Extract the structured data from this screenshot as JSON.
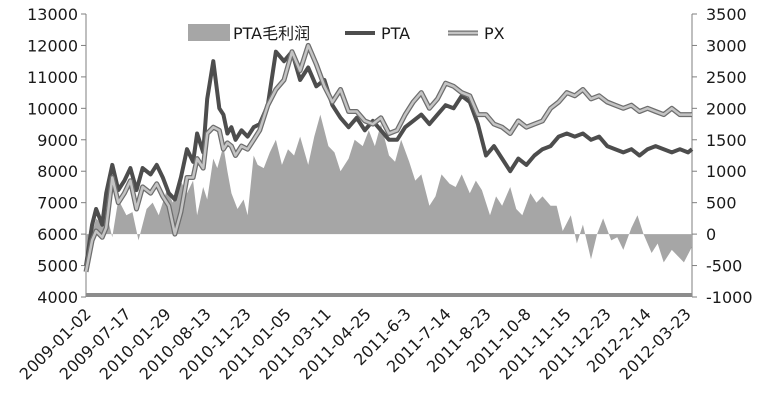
{
  "chart_data": {
    "type": "combo",
    "title": "",
    "left_axis": {
      "min": 4000,
      "max": 13000,
      "step": 1000,
      "ticks": [
        "4000",
        "5000",
        "6000",
        "7000",
        "8000",
        "9000",
        "10000",
        "11000",
        "12000",
        "13000"
      ]
    },
    "right_axis": {
      "min": -1000,
      "max": 3500,
      "step": 500,
      "ticks": [
        "-1000",
        "-500",
        "0",
        "500",
        "1000",
        "1500",
        "2000",
        "2500",
        "3000",
        "3500"
      ]
    },
    "x_labels": [
      "2009-01-02",
      "2009-07-17",
      "2010-01-29",
      "2010-08-13",
      "2010-11-23",
      "2011-01-05",
      "2011-03-11",
      "2011-04-25",
      "2011-6-3",
      "2011-7-14",
      "2011-8-23",
      "2011-10-8",
      "2011-11-15",
      "2011-12-23",
      "2012-2-14",
      "2012-03-23"
    ],
    "grid": false,
    "legend_position": "top",
    "colors": {
      "margin_area": "#a6a6a6",
      "pta_line": "#4d4d4d",
      "px_line": "#c4c4c4",
      "px_outline": "#6e6e6e",
      "baseline": "#8c8c8c"
    },
    "series": [
      {
        "name": "PTA毛利润",
        "type": "area",
        "axis": "right",
        "x": [
          0,
          2,
          5,
          8,
          10,
          13,
          16,
          20,
          23,
          26,
          30,
          33,
          36,
          40,
          43,
          46,
          50,
          53,
          55,
          58,
          60,
          63,
          65,
          68,
          70,
          72,
          75,
          78,
          80,
          83,
          85,
          88,
          91,
          94,
          97,
          100,
          103,
          106,
          110,
          113,
          116,
          120,
          123,
          126,
          130,
          133,
          137,
          140,
          143,
          146,
          150,
          153,
          156,
          160,
          163,
          166,
          170,
          173,
          176,
          180,
          183,
          186,
          190,
          193,
          196,
          200,
          203,
          206,
          210,
          213,
          216,
          220,
          223,
          226,
          230,
          233,
          236,
          240,
          243,
          246,
          250,
          253,
          256,
          260,
          263,
          266,
          270,
          273,
          276,
          280,
          283,
          286,
          290,
          293,
          296,
          300
        ],
        "values": [
          -600,
          -100,
          250,
          150,
          350,
          -50,
          550,
          300,
          350,
          -100,
          400,
          500,
          300,
          700,
          500,
          900,
          650,
          850,
          300,
          750,
          550,
          1200,
          1050,
          1400,
          1000,
          650,
          400,
          550,
          300,
          1250,
          1100,
          1050,
          1300,
          1500,
          1100,
          1350,
          1250,
          1550,
          1100,
          1550,
          1900,
          1400,
          1300,
          1000,
          1200,
          1500,
          1400,
          1650,
          1400,
          1750,
          1250,
          1150,
          1500,
          1150,
          850,
          950,
          450,
          600,
          950,
          800,
          750,
          950,
          650,
          850,
          700,
          300,
          600,
          450,
          750,
          400,
          300,
          650,
          500,
          600,
          450,
          450,
          50,
          300,
          -150,
          150,
          -400,
          0,
          250,
          -100,
          -50,
          -250,
          100,
          300,
          0,
          -300,
          -150,
          -450,
          -250,
          -350,
          -450,
          -200
        ],
        "zero_segments": [
          [
            100,
            104
          ],
          [
            124,
            128
          ],
          [
            131,
            136
          ],
          [
            146,
            150
          ],
          [
            262,
            268
          ]
        ]
      },
      {
        "name": "PTA",
        "type": "line",
        "axis": "left",
        "x": [
          0,
          3,
          5,
          8,
          10,
          13,
          16,
          19,
          22,
          25,
          28,
          32,
          35,
          38,
          41,
          44,
          47,
          50,
          53,
          55,
          58,
          60,
          63,
          66,
          68,
          70,
          72,
          74,
          77,
          80,
          83,
          86,
          90,
          94,
          98,
          102,
          106,
          110,
          114,
          118,
          122,
          126,
          130,
          134,
          138,
          142,
          146,
          150,
          154,
          158,
          162,
          166,
          170,
          174,
          178,
          182,
          186,
          190,
          194,
          198,
          202,
          206,
          210,
          214,
          218,
          222,
          226,
          230,
          234,
          238,
          242,
          246,
          250,
          254,
          258,
          262,
          266,
          270,
          274,
          278,
          282,
          286,
          290,
          294,
          298,
          300
        ],
        "values": [
          5000,
          6300,
          6800,
          6300,
          7300,
          8200,
          7400,
          7700,
          8100,
          7400,
          8100,
          7900,
          8200,
          7800,
          7300,
          7100,
          7800,
          8700,
          8300,
          9200,
          8600,
          10300,
          11500,
          10000,
          9800,
          9200,
          9400,
          9000,
          9300,
          9100,
          9400,
          9500,
          10100,
          11800,
          11500,
          11800,
          10900,
          11300,
          10700,
          10900,
          10100,
          9700,
          9400,
          9700,
          9300,
          9600,
          9300,
          9000,
          9000,
          9400,
          9600,
          9800,
          9500,
          9800,
          10100,
          10000,
          10400,
          10200,
          9500,
          8500,
          8800,
          8400,
          8000,
          8400,
          8200,
          8500,
          8700,
          8800,
          9100,
          9200,
          9100,
          9200,
          9000,
          9100,
          8800,
          8700,
          8600,
          8700,
          8500,
          8700,
          8800,
          8700,
          8600,
          8700,
          8600,
          8700
        ],
        "outline": false
      },
      {
        "name": "PX",
        "type": "line",
        "axis": "left",
        "x": [
          0,
          3,
          5,
          8,
          10,
          13,
          16,
          19,
          22,
          25,
          28,
          32,
          35,
          38,
          41,
          44,
          47,
          50,
          53,
          55,
          58,
          60,
          63,
          66,
          68,
          70,
          72,
          74,
          77,
          80,
          83,
          86,
          90,
          94,
          98,
          102,
          106,
          110,
          114,
          118,
          122,
          126,
          130,
          134,
          138,
          142,
          146,
          150,
          154,
          158,
          162,
          166,
          170,
          174,
          178,
          182,
          186,
          190,
          194,
          198,
          202,
          206,
          210,
          214,
          218,
          222,
          226,
          230,
          234,
          238,
          242,
          246,
          250,
          254,
          258,
          262,
          266,
          270,
          274,
          278,
          282,
          286,
          290,
          294,
          298,
          300
        ],
        "values": [
          4800,
          5800,
          6100,
          5900,
          6200,
          7800,
          7000,
          7300,
          7700,
          6800,
          7500,
          7300,
          7600,
          7200,
          6900,
          6000,
          6700,
          7800,
          7800,
          8400,
          8100,
          9200,
          9400,
          9300,
          8700,
          8900,
          8800,
          8500,
          8800,
          8700,
          9000,
          9300,
          10100,
          10600,
          10900,
          11800,
          11200,
          12000,
          11400,
          10700,
          10200,
          10600,
          9900,
          9900,
          9600,
          9500,
          9700,
          9200,
          9300,
          9800,
          10200,
          10500,
          10000,
          10300,
          10800,
          10700,
          10500,
          10400,
          9800,
          9800,
          9500,
          9400,
          9200,
          9600,
          9400,
          9500,
          9600,
          10000,
          10200,
          10500,
          10400,
          10600,
          10300,
          10400,
          10200,
          10100,
          10000,
          10100,
          9900,
          10000,
          9900,
          9800,
          10000,
          9800,
          9800,
          9800
        ],
        "outline": true
      }
    ]
  }
}
